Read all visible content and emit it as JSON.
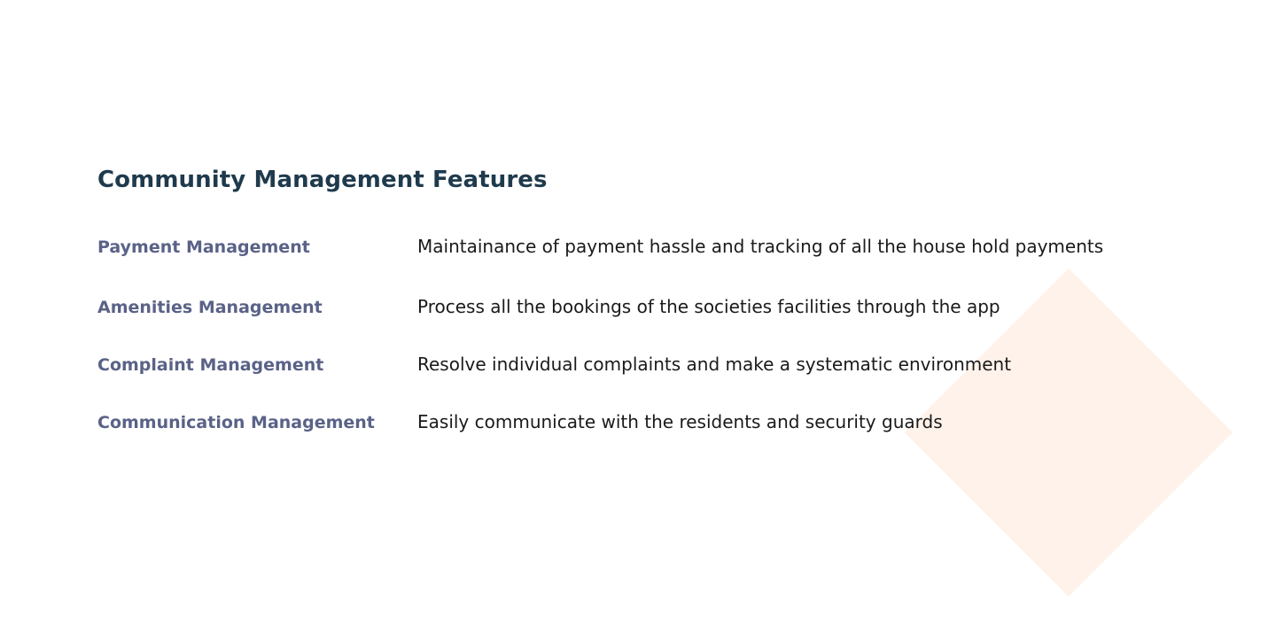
{
  "section": {
    "title": "Community Management Features"
  },
  "features": [
    {
      "name": "Payment Management",
      "description": "Maintainance of payment hassle and tracking of all the house hold payments"
    },
    {
      "name": "Amenities Management",
      "description": "Process all the bookings of the societies facilities through the app"
    },
    {
      "name": "Complaint Management",
      "description": "Resolve individual complaints and make a systematic environment"
    },
    {
      "name": "Communication Management",
      "description": "Easily communicate with the residents and security guards"
    }
  ],
  "colors": {
    "title": "#1f3a4d",
    "feature_name": "#5a6287",
    "description": "#1a1a1a",
    "accent_shape": "#fef2ea"
  }
}
